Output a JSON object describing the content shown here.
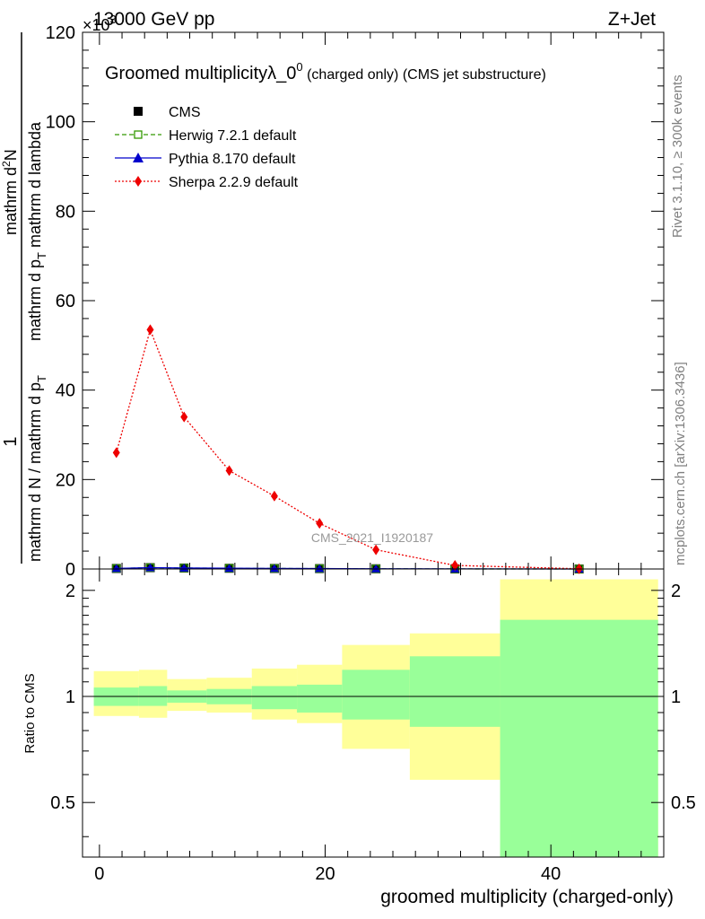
{
  "header": {
    "energy": "13000 GeV pp",
    "process": "Z+Jet",
    "exponent_label": "×10",
    "exponent_sup": "3"
  },
  "side": {
    "rivet": "Rivet 3.1.10, ≥ 300k events",
    "mcplots": "mcplots.cern.ch [arXiv:1306.3436]"
  },
  "watermark": "CMS_2021_I1920187",
  "chart_data": [
    {
      "type": "line",
      "title": "Groomed multiplicityλ_0",
      "title_sup": "0",
      "subtitle": " (charged only) (CMS jet substructure)",
      "ylabel": "1 / (mathrm d N / mathrm d p_T) · mathrm d²N / (mathrm d p_T mathrm d lambda)",
      "ylabel_parts": {
        "numerator_top": "1",
        "denominator_top": "mathrm d N / mathrm d p",
        "denominator_top_sub": "T",
        "numerator_bottom": "mathrm d",
        "numerator_bottom_sup": "2",
        "numerator_bottom_end": "N",
        "denominator_bottom": "mathrm d p",
        "denominator_bottom_sub": "T",
        "denominator_bottom_end": " mathrm d lambda"
      },
      "xlabel": "groomed multiplicity (charged-only)",
      "xlim": [
        -1.5,
        50
      ],
      "ylim": [
        0,
        120
      ],
      "y_scale_factor": 1000,
      "yticks": [
        0,
        20,
        40,
        60,
        80,
        100,
        120
      ],
      "ytick_labels": [
        "0",
        "20",
        "40",
        "60",
        "80",
        "100",
        "120"
      ],
      "xticks": [
        0,
        20,
        40
      ],
      "xtick_labels": [
        "0",
        "20",
        "40"
      ],
      "x": [
        1.5,
        4.5,
        7.5,
        11.5,
        15.5,
        19.5,
        24.5,
        31.5,
        42.5
      ],
      "series": [
        {
          "name": "CMS",
          "style": "square",
          "color": "#000000",
          "values": [
            0.12,
            0.3,
            0.22,
            0.16,
            0.12,
            0.09,
            0.05,
            0.02,
            0.005
          ]
        },
        {
          "name": "Herwig 7.2.1 default",
          "style": "open-square-dashed",
          "color": "#339900",
          "values": [
            0.12,
            0.3,
            0.22,
            0.16,
            0.12,
            0.09,
            0.05,
            0.02,
            0.005
          ]
        },
        {
          "name": "Pythia 8.170 default",
          "style": "triangle-solid",
          "color": "#0000cc",
          "values": [
            0.12,
            0.3,
            0.22,
            0.16,
            0.12,
            0.09,
            0.05,
            0.02,
            0.005
          ]
        },
        {
          "name": "Sherpa 2.2.9 default",
          "style": "diamond-dotted",
          "color": "#ee0000",
          "values": [
            26,
            53.5,
            34,
            22,
            16.3,
            10.2,
            4.3,
            0.8,
            0.05
          ]
        }
      ]
    },
    {
      "type": "area",
      "ylabel": "Ratio to CMS",
      "ylim": [
        0.35,
        2.3
      ],
      "yscale": "log",
      "yticks": [
        0.5,
        1,
        2
      ],
      "ytick_labels": [
        "0.5",
        "1",
        "2"
      ],
      "bins": [
        [
          -0.5,
          3.5
        ],
        [
          3.5,
          6
        ],
        [
          6,
          9.5
        ],
        [
          9.5,
          13.5
        ],
        [
          13.5,
          17.5
        ],
        [
          17.5,
          21.5
        ],
        [
          21.5,
          27.5
        ],
        [
          27.5,
          35.5
        ],
        [
          35.5,
          49.5
        ]
      ],
      "band_1sigma": [
        [
          0.94,
          1.06
        ],
        [
          0.94,
          1.07
        ],
        [
          0.96,
          1.04
        ],
        [
          0.95,
          1.05
        ],
        [
          0.92,
          1.07
        ],
        [
          0.9,
          1.08
        ],
        [
          0.86,
          1.19
        ],
        [
          0.82,
          1.3
        ],
        [
          0.33,
          1.65
        ]
      ],
      "band_2sigma": [
        [
          0.88,
          1.18
        ],
        [
          0.87,
          1.19
        ],
        [
          0.91,
          1.12
        ],
        [
          0.9,
          1.13
        ],
        [
          0.86,
          1.2
        ],
        [
          0.84,
          1.23
        ],
        [
          0.71,
          1.4
        ],
        [
          0.58,
          1.51
        ],
        [
          0.33,
          2.15
        ]
      ],
      "colors": {
        "band_1sigma": "#99ff99",
        "band_2sigma": "#ffff99",
        "reference": "#000000"
      }
    }
  ]
}
